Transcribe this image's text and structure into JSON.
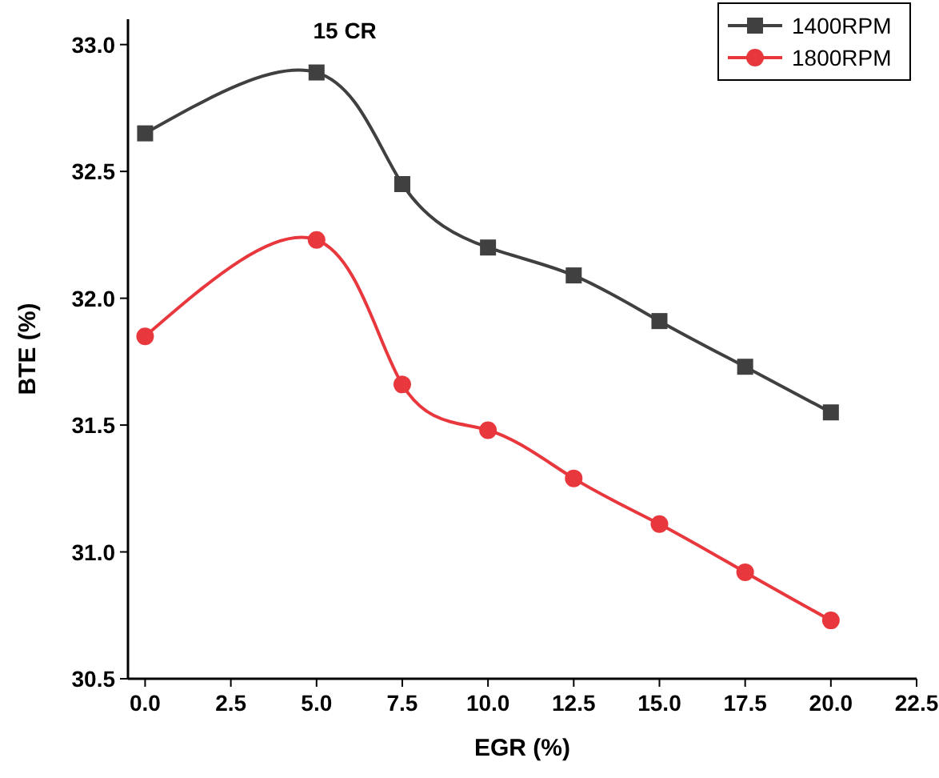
{
  "chart_data": {
    "type": "line",
    "title": "15 CR",
    "xlabel": "EGR (%)",
    "ylabel": "BTE (%)",
    "x": [
      0,
      5,
      7.5,
      10,
      12.5,
      15,
      17.5,
      20
    ],
    "series": [
      {
        "name": "1400RPM",
        "color": "#404040",
        "marker": "square",
        "values": [
          32.65,
          32.89,
          32.45,
          32.2,
          32.09,
          31.91,
          31.73,
          31.55
        ]
      },
      {
        "name": "1800RPM",
        "color": "#e8383d",
        "marker": "circle",
        "values": [
          31.85,
          32.23,
          31.66,
          31.48,
          31.29,
          31.11,
          30.92,
          30.73
        ]
      }
    ],
    "xlim": [
      -0.5,
      22.5
    ],
    "xticks": [
      {
        "value": 0,
        "label": "0.0"
      },
      2.5,
      {
        "value": 5,
        "label": "5.0"
      },
      7.5,
      {
        "value": 10,
        "label": "10.0"
      },
      12.5,
      {
        "value": 15,
        "label": "15.0"
      },
      17.5,
      {
        "value": 20,
        "label": "20.0"
      },
      22.5
    ],
    "ylim": [
      30.5,
      33.1
    ],
    "yticks": [
      {
        "value": 30.5,
        "label": "30.5"
      },
      {
        "value": 31,
        "label": "31.0"
      },
      {
        "value": 31.5,
        "label": "31.5"
      },
      {
        "value": 32,
        "label": "32.0"
      },
      {
        "value": 32.5,
        "label": "32.5"
      },
      {
        "value": 33,
        "label": "33.0"
      }
    ],
    "grid": false,
    "legend": "top right",
    "line_style": "solid"
  }
}
